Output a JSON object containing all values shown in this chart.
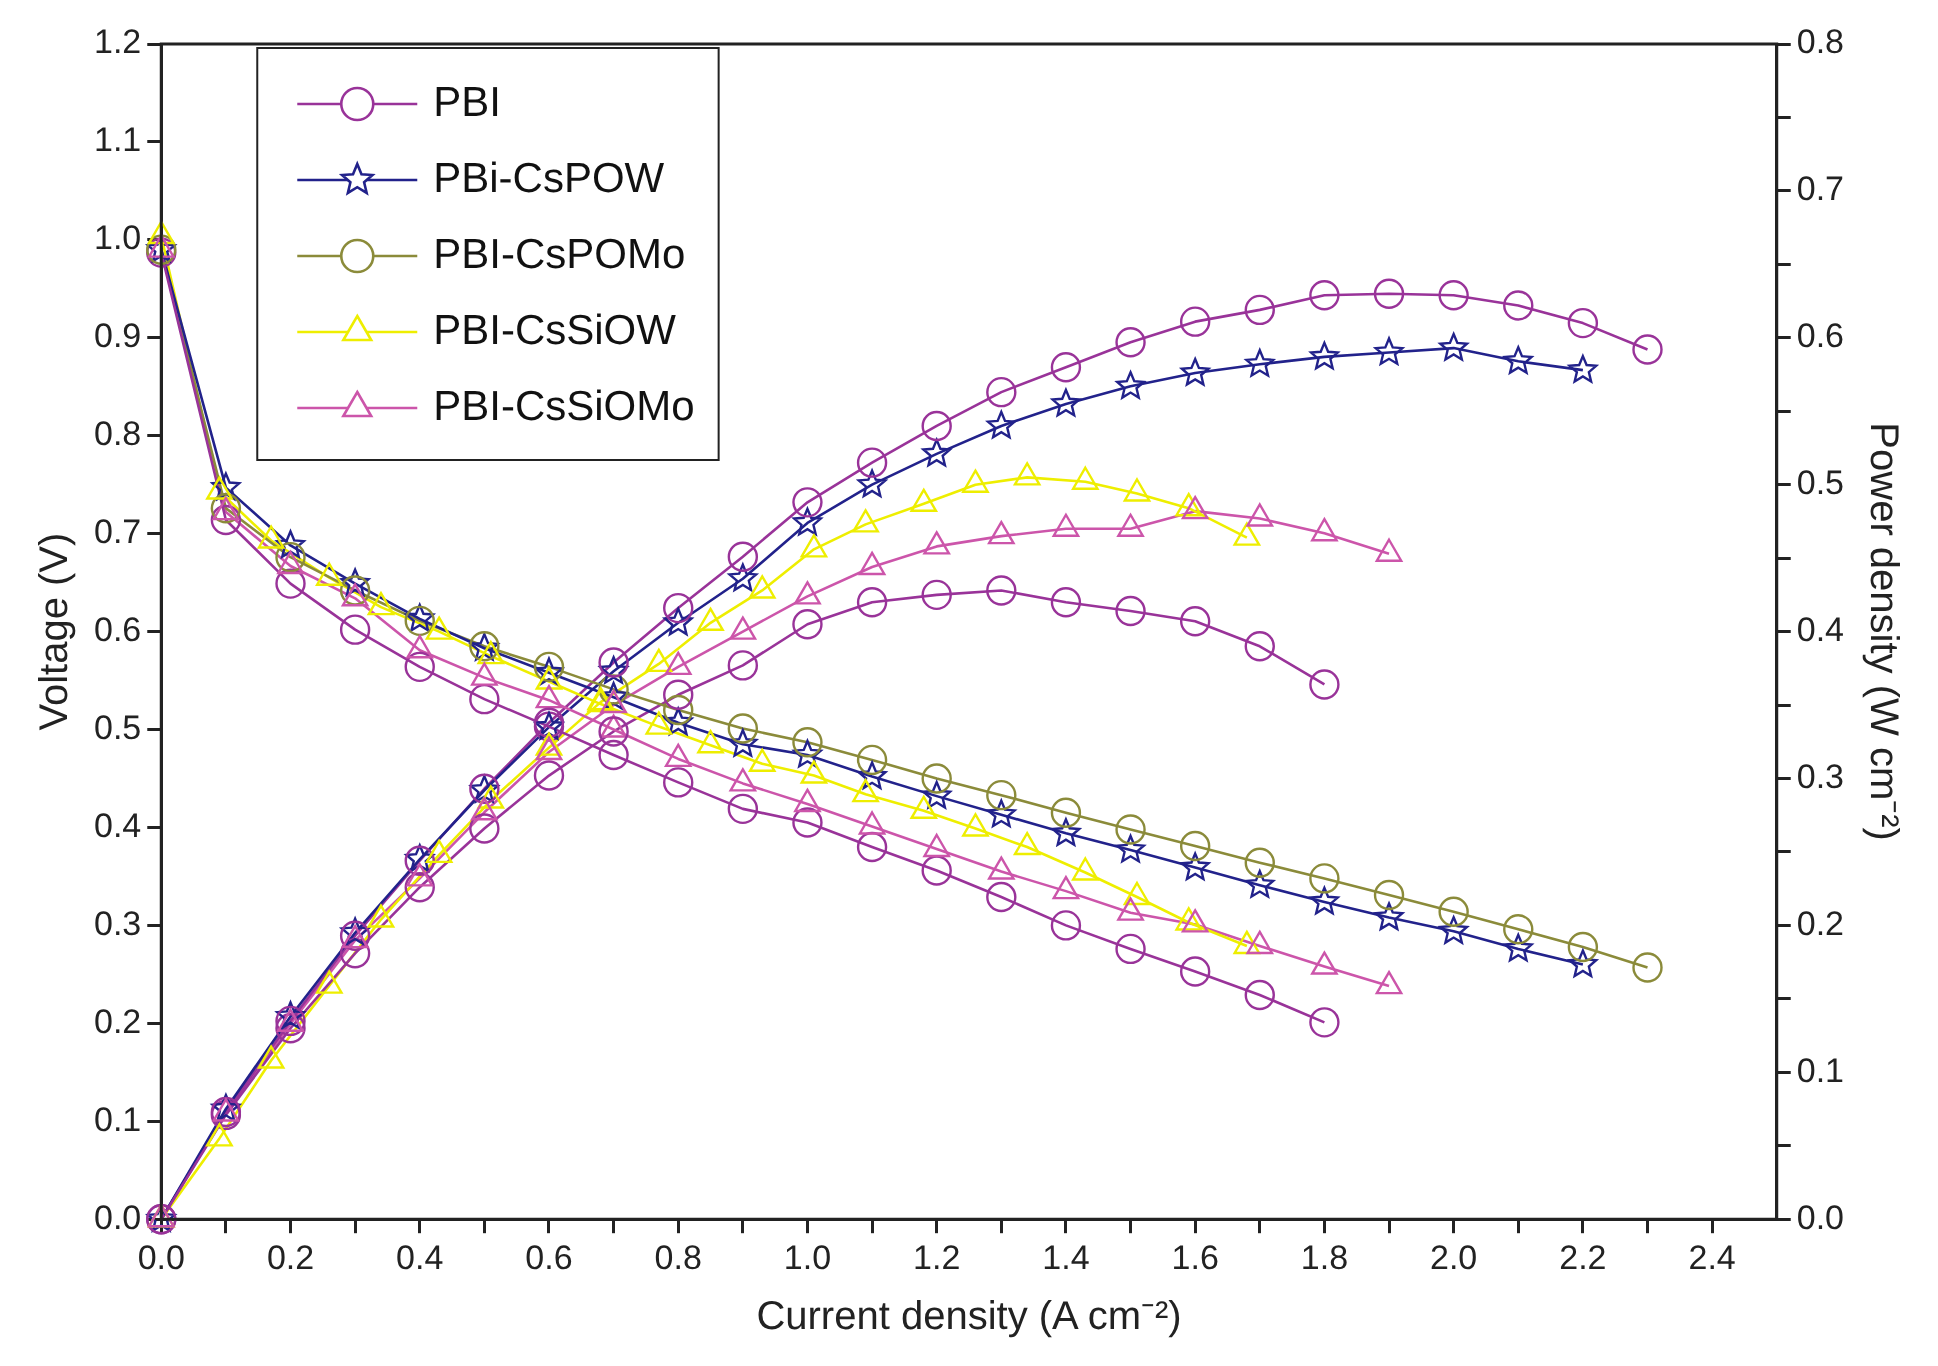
{
  "chart_data": {
    "type": "line",
    "xlabel": "Current density (A cm⁻²)",
    "ylabel": "Voltage (V)",
    "y2label": "Power density (W cm⁻²)",
    "legend": "top left",
    "line_style": "solid",
    "xlim": [
      0,
      2.5
    ],
    "xticks": [
      {
        "value": 0,
        "label": "0.0"
      },
      {
        "value": 0.1,
        "label": null
      },
      {
        "value": 0.2,
        "label": "0.2"
      },
      {
        "value": 0.3,
        "label": null
      },
      {
        "value": 0.4,
        "label": "0.4"
      },
      {
        "value": 0.5,
        "label": null
      },
      {
        "value": 0.6,
        "label": "0.6"
      },
      {
        "value": 0.7,
        "label": null
      },
      {
        "value": 0.8,
        "label": "0.8"
      },
      {
        "value": 0.9,
        "label": null
      },
      {
        "value": 1,
        "label": "1.0"
      },
      {
        "value": 1.1,
        "label": null
      },
      {
        "value": 1.2,
        "label": "1.2"
      },
      {
        "value": 1.3,
        "label": null
      },
      {
        "value": 1.4,
        "label": "1.4"
      },
      {
        "value": 1.5,
        "label": null
      },
      {
        "value": 1.6,
        "label": "1.6"
      },
      {
        "value": 1.7,
        "label": null
      },
      {
        "value": 1.8,
        "label": "1.8"
      },
      {
        "value": 1.9,
        "label": null
      },
      {
        "value": 2,
        "label": "2.0"
      },
      {
        "value": 2.1,
        "label": null
      },
      {
        "value": 2.2,
        "label": "2.2"
      },
      {
        "value": 2.3,
        "label": null
      },
      {
        "value": 2.4,
        "label": "2.4"
      }
    ],
    "ylim": [
      0,
      1.2
    ],
    "yticks": [
      {
        "value": 0,
        "label": "0.0"
      },
      {
        "value": 0.1,
        "label": "0.1"
      },
      {
        "value": 0.2,
        "label": "0.2"
      },
      {
        "value": 0.3,
        "label": "0.3"
      },
      {
        "value": 0.4,
        "label": "0.4"
      },
      {
        "value": 0.5,
        "label": "0.5"
      },
      {
        "value": 0.6,
        "label": "0.6"
      },
      {
        "value": 0.7,
        "label": "0.7"
      },
      {
        "value": 0.8,
        "label": "0.8"
      },
      {
        "value": 0.9,
        "label": "0.9"
      },
      {
        "value": 1,
        "label": "1.0"
      },
      {
        "value": 1.1,
        "label": "1.1"
      },
      {
        "value": 1.2,
        "label": "1.2"
      }
    ],
    "y2lim": [
      0,
      0.8
    ],
    "y2ticks": [
      {
        "value": 0,
        "label": "0.0"
      },
      {
        "value": 0.05,
        "label": null
      },
      {
        "value": 0.1,
        "label": "0.1"
      },
      {
        "value": 0.15,
        "label": null
      },
      {
        "value": 0.2,
        "label": "0.2"
      },
      {
        "value": 0.25,
        "label": null
      },
      {
        "value": 0.3,
        "label": "0.3"
      },
      {
        "value": 0.35,
        "label": null
      },
      {
        "value": 0.4,
        "label": "0.4"
      },
      {
        "value": 0.45,
        "label": null
      },
      {
        "value": 0.5,
        "label": "0.5"
      },
      {
        "value": 0.55,
        "label": null
      },
      {
        "value": 0.6,
        "label": "0.6"
      },
      {
        "value": 0.65,
        "label": null
      },
      {
        "value": 0.7,
        "label": "0.7"
      },
      {
        "value": 0.75,
        "label": null
      },
      {
        "value": 0.8,
        "label": "0.8"
      }
    ],
    "series": [
      {
        "name": "PBI",
        "type": "line",
        "color": "#993399",
        "marker": "circle",
        "x": [
          0,
          0.1,
          0.2,
          0.3,
          0.4,
          0.5,
          0.6,
          0.7,
          0.8,
          0.9,
          1,
          1.1,
          1.2,
          1.3,
          1.4,
          1.5,
          1.6,
          1.7,
          1.8
        ],
        "values": [
          0.987,
          0.714,
          0.649,
          0.602,
          0.564,
          0.531,
          0.503,
          0.474,
          0.446,
          0.419,
          0.405,
          0.38,
          0.356,
          0.329,
          0.3,
          0.276,
          0.253,
          0.229,
          0.201
        ]
      },
      {
        "name": "PBi-CsPOW",
        "type": "line",
        "color": "#22228b",
        "marker": "star",
        "x": [
          0,
          0.1,
          0.2,
          0.3,
          0.4,
          0.5,
          0.6,
          0.7,
          0.8,
          0.9,
          1,
          1.1,
          1.2,
          1.3,
          1.4,
          1.5,
          1.6,
          1.7,
          1.8,
          1.9,
          2,
          2.1,
          2.2
        ],
        "values": [
          0.99,
          0.747,
          0.688,
          0.649,
          0.613,
          0.583,
          0.558,
          0.533,
          0.507,
          0.485,
          0.474,
          0.452,
          0.432,
          0.413,
          0.394,
          0.377,
          0.359,
          0.341,
          0.324,
          0.308,
          0.294,
          0.276,
          0.26
        ]
      },
      {
        "name": "PBI-CsPOMo",
        "type": "line",
        "color": "#8b8b3a",
        "marker": "circle",
        "x": [
          0,
          0.1,
          0.2,
          0.3,
          0.4,
          0.5,
          0.6,
          0.7,
          0.8,
          0.9,
          1,
          1.1,
          1.2,
          1.3,
          1.4,
          1.5,
          1.6,
          1.7,
          1.8,
          1.9,
          2,
          2.1,
          2.2,
          2.3
        ],
        "values": [
          0.99,
          0.726,
          0.676,
          0.642,
          0.611,
          0.585,
          0.564,
          0.541,
          0.52,
          0.501,
          0.487,
          0.469,
          0.45,
          0.433,
          0.415,
          0.398,
          0.381,
          0.364,
          0.348,
          0.331,
          0.314,
          0.296,
          0.278,
          0.257
        ]
      },
      {
        "name": "PBI-CsSiOW",
        "type": "line",
        "color": "#eeee00",
        "marker": "triangle",
        "x": [
          0,
          0.09,
          0.17,
          0.26,
          0.34,
          0.43,
          0.51,
          0.6,
          0.68,
          0.77,
          0.85,
          0.93,
          1.01,
          1.09,
          1.18,
          1.26,
          1.34,
          1.43,
          1.51,
          1.59,
          1.68
        ],
        "values": [
          1.004,
          0.743,
          0.693,
          0.655,
          0.625,
          0.6,
          0.575,
          0.549,
          0.526,
          0.503,
          0.484,
          0.465,
          0.453,
          0.434,
          0.417,
          0.399,
          0.38,
          0.354,
          0.329,
          0.303,
          0.279
        ]
      },
      {
        "name": "PBI-CsSiOMo",
        "type": "line",
        "color": "#cc55aa",
        "marker": "triangle",
        "x": [
          0,
          0.1,
          0.2,
          0.3,
          0.4,
          0.5,
          0.6,
          0.7,
          0.8,
          0.9,
          1,
          1.1,
          1.2,
          1.3,
          1.4,
          1.5,
          1.6,
          1.7,
          1.8,
          1.9
        ],
        "values": [
          0.99,
          0.722,
          0.667,
          0.634,
          0.581,
          0.553,
          0.53,
          0.5,
          0.47,
          0.445,
          0.424,
          0.401,
          0.378,
          0.355,
          0.335,
          0.313,
          0.301,
          0.279,
          0.258,
          0.238
        ]
      },
      {
        "type": "line",
        "axis": "y2",
        "color": "#993399",
        "marker": "circle",
        "x": [
          0,
          0.1,
          0.2,
          0.3,
          0.4,
          0.5,
          0.6,
          0.7,
          0.8,
          0.9,
          1,
          1.1,
          1.2,
          1.3,
          1.4,
          1.5,
          1.6,
          1.7,
          1.8
        ],
        "values": [
          0,
          0.071,
          0.13,
          0.181,
          0.226,
          0.266,
          0.302,
          0.332,
          0.357,
          0.377,
          0.405,
          0.42,
          0.425,
          0.428,
          0.42,
          0.414,
          0.407,
          0.39,
          0.364
        ]
      },
      {
        "type": "line",
        "axis": "y2",
        "color": "#22228b",
        "marker": "star",
        "x": [
          0,
          0.1,
          0.2,
          0.3,
          0.4,
          0.5,
          0.6,
          0.7,
          0.8,
          0.9,
          1,
          1.1,
          1.2,
          1.3,
          1.4,
          1.5,
          1.6,
          1.7,
          1.8,
          1.9,
          2,
          2.1,
          2.2
        ],
        "values": [
          0,
          0.075,
          0.138,
          0.195,
          0.245,
          0.292,
          0.335,
          0.373,
          0.406,
          0.436,
          0.474,
          0.5,
          0.521,
          0.54,
          0.555,
          0.567,
          0.576,
          0.582,
          0.587,
          0.59,
          0.593,
          0.584,
          0.578
        ]
      },
      {
        "type": "line",
        "axis": "y2",
        "color": "#993399",
        "marker": "circle",
        "x": [
          0,
          0.1,
          0.2,
          0.3,
          0.4,
          0.5,
          0.6,
          0.7,
          0.8,
          0.9,
          1,
          1.1,
          1.2,
          1.3,
          1.4,
          1.5,
          1.6,
          1.7,
          1.8,
          1.9,
          2,
          2.1,
          2.2,
          2.3
        ],
        "values": [
          0,
          0.073,
          0.135,
          0.193,
          0.244,
          0.293,
          0.338,
          0.379,
          0.416,
          0.451,
          0.488,
          0.515,
          0.54,
          0.563,
          0.58,
          0.597,
          0.611,
          0.619,
          0.629,
          0.63,
          0.629,
          0.622,
          0.61,
          0.592
        ]
      },
      {
        "type": "line",
        "axis": "y2",
        "color": "#eeee00",
        "marker": "triangle",
        "x": [
          0,
          0.09,
          0.17,
          0.26,
          0.34,
          0.43,
          0.51,
          0.6,
          0.68,
          0.77,
          0.85,
          0.93,
          1.01,
          1.09,
          1.18,
          1.26,
          1.34,
          1.43,
          1.51,
          1.59,
          1.68
        ],
        "values": [
          0,
          0.055,
          0.108,
          0.159,
          0.204,
          0.248,
          0.285,
          0.321,
          0.352,
          0.378,
          0.406,
          0.428,
          0.456,
          0.473,
          0.487,
          0.5,
          0.505,
          0.502,
          0.494,
          0.484,
          0.464
        ]
      },
      {
        "type": "line",
        "axis": "y2",
        "color": "#cc55aa",
        "marker": "triangle",
        "x": [
          0,
          0.1,
          0.2,
          0.3,
          0.4,
          0.5,
          0.6,
          0.7,
          0.8,
          0.9,
          1,
          1.1,
          1.2,
          1.3,
          1.4,
          1.5,
          1.6,
          1.7,
          1.8,
          1.9
        ],
        "values": [
          0,
          0.072,
          0.133,
          0.19,
          0.232,
          0.277,
          0.318,
          0.35,
          0.376,
          0.4,
          0.424,
          0.444,
          0.458,
          0.465,
          0.47,
          0.47,
          0.482,
          0.477,
          0.467,
          0.453
        ]
      }
    ]
  }
}
